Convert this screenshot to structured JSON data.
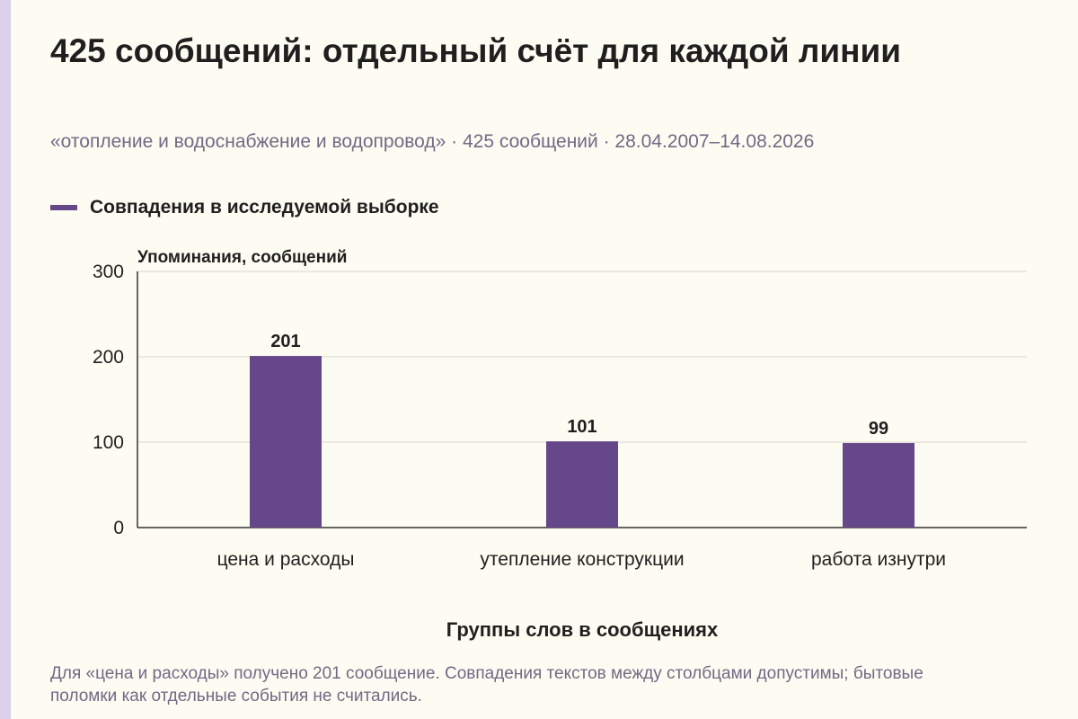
{
  "chart_data": {
    "type": "bar",
    "title": "425 сообщений: отдельный счёт для каждой линии",
    "subtitle": "«отопление и водоснабжение и водопровод» · 425 сообщений · 28.04.2007–14.08.2026",
    "categories": [
      "цена и расходы",
      "утепление конструкции",
      "работа изнутри"
    ],
    "series": [
      {
        "name": "Совпадения в исследуемой выборке",
        "values": [
          201,
          101,
          99
        ],
        "color": "#66488a"
      }
    ],
    "data_labels": [
      "201",
      "101",
      "99"
    ],
    "ylabel": "Упоминания, сообщений",
    "xlabel": "Группы слов в сообщениях",
    "ylim": [
      0,
      300
    ],
    "yticks": [
      0,
      100,
      200,
      300
    ],
    "grid": true,
    "legend_position": "top-left"
  },
  "footnote": "Для «цена и расходы» получено 201 сообщение. Совпадения текстов между столбцами допустимы; бытовые поломки как отдельные события не считались.",
  "colors": {
    "background": "#fdfcf2",
    "accent_strip": "#dcd0ea",
    "grid": "#d9d6cc",
    "axis": "#333333"
  }
}
